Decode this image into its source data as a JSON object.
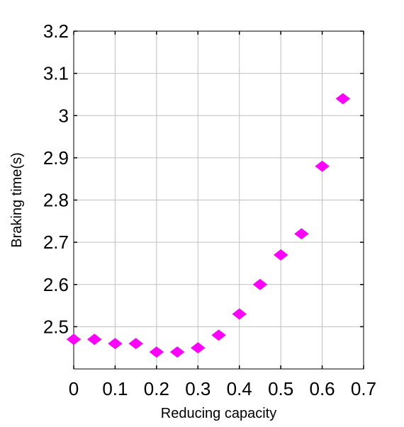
{
  "chart_data": {
    "type": "scatter",
    "title": "",
    "xlabel": "Reducing capacity",
    "ylabel": "Braking time(s)",
    "xlim": [
      0,
      0.7
    ],
    "ylim": [
      2.4,
      3.2
    ],
    "x_ticks": [
      0,
      0.1,
      0.2,
      0.3,
      0.4,
      0.5,
      0.6,
      0.7
    ],
    "y_ticks": [
      2.5,
      2.6,
      2.7,
      2.8,
      2.9,
      3.0,
      3.1,
      3.2
    ],
    "x_tick_labels": [
      "0",
      "0.1",
      "0.2",
      "0.3",
      "0.4",
      "0.5",
      "0.6",
      "0.7"
    ],
    "y_tick_labels": [
      "2.5",
      "2.6",
      "2.7",
      "2.8",
      "2.9",
      "3",
      "3.1",
      "3.2"
    ],
    "grid": true,
    "marker_color": "#ff00ff",
    "series": [
      {
        "x": [
          0,
          0.05,
          0.1,
          0.15,
          0.2,
          0.25,
          0.3,
          0.35,
          0.4,
          0.45,
          0.5,
          0.55,
          0.6,
          0.65
        ],
        "y": [
          2.47,
          2.47,
          2.46,
          2.46,
          2.44,
          2.44,
          2.45,
          2.48,
          2.53,
          2.6,
          2.67,
          2.72,
          2.88,
          3.04
        ]
      }
    ]
  }
}
